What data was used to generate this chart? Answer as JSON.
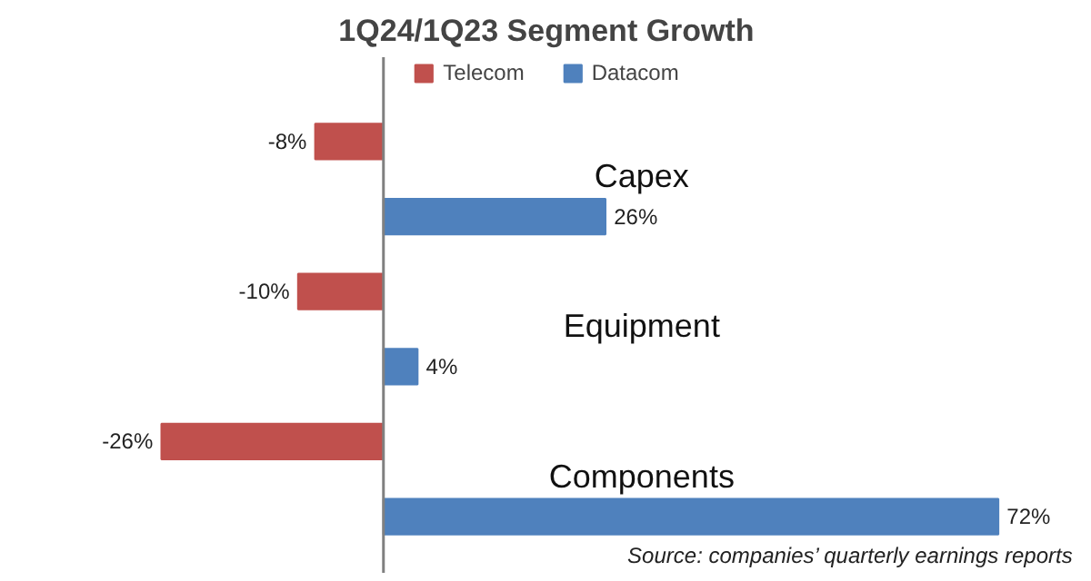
{
  "chart_data": {
    "type": "bar",
    "orientation": "horizontal",
    "title": "1Q24/1Q23 Segment Growth",
    "categories": [
      "Capex",
      "Equipment",
      "Components"
    ],
    "series": [
      {
        "name": "Telecom",
        "color": "#c0504d",
        "values": [
          -8,
          -10,
          -26
        ],
        "value_labels": [
          "-8%",
          "-10%",
          "-26%"
        ]
      },
      {
        "name": "Datacom",
        "color": "#4f81bd",
        "values": [
          26,
          4,
          72
        ],
        "value_labels": [
          "26%",
          "4%",
          "72%"
        ]
      }
    ],
    "legend": "top",
    "annotations": [
      "Source: companies’ quarterly earnings reports"
    ]
  }
}
